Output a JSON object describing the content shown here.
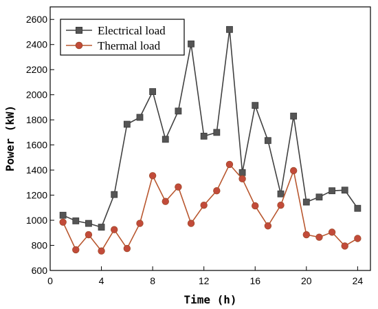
{
  "chart_data": {
    "type": "line",
    "title": "",
    "xlabel": "Time (h)",
    "ylabel": "Power (kW)",
    "xlim": [
      0,
      25
    ],
    "ylim": [
      600,
      2700
    ],
    "xticks": [
      0,
      4,
      8,
      12,
      16,
      20,
      24
    ],
    "yticks": [
      600,
      800,
      1000,
      1200,
      1400,
      1600,
      1800,
      2000,
      2200,
      2400,
      2600
    ],
    "grid": false,
    "legend_position": "top-left",
    "x": [
      1,
      2,
      3,
      4,
      5,
      6,
      7,
      8,
      9,
      10,
      11,
      12,
      13,
      14,
      15,
      16,
      17,
      18,
      19,
      20,
      21,
      22,
      23,
      24
    ],
    "series": [
      {
        "name": "Electrical load",
        "color": "#404040",
        "marker": "square",
        "values": [
          1040,
          995,
          975,
          945,
          1205,
          1765,
          1820,
          2025,
          1645,
          1870,
          2405,
          1670,
          1700,
          2520,
          1380,
          1915,
          1635,
          1210,
          1830,
          1145,
          1185,
          1235,
          1240,
          1095
        ]
      },
      {
        "name": "Thermal load",
        "color": "#b8562e",
        "marker": "circle",
        "values": [
          985,
          765,
          885,
          755,
          925,
          775,
          975,
          1355,
          1150,
          1265,
          975,
          1120,
          1235,
          1445,
          1330,
          1115,
          955,
          1120,
          1395,
          885,
          865,
          905,
          795,
          855
        ]
      }
    ]
  }
}
